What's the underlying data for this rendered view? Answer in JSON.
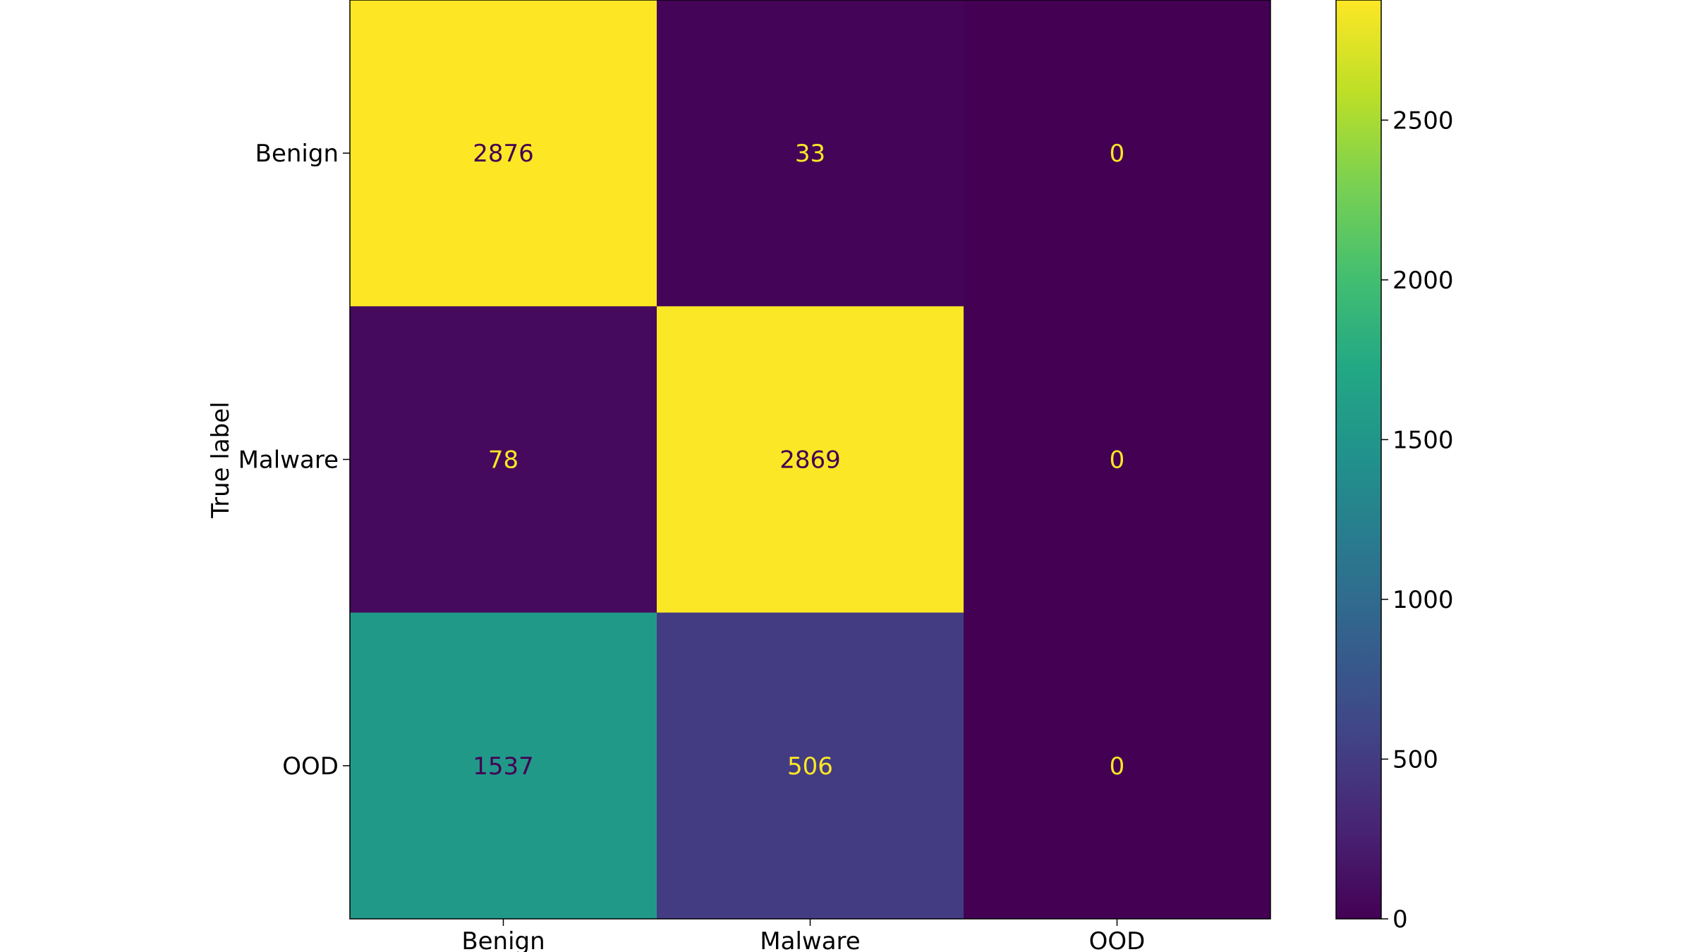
{
  "chart_data": {
    "type": "heatmap",
    "title": "",
    "ylabel": "True label",
    "xlabel": "",
    "x_categories": [
      "Benign",
      "Malware",
      "OOD"
    ],
    "y_categories": [
      "Benign",
      "Malware",
      "OOD"
    ],
    "values": [
      [
        2876,
        33,
        0
      ],
      [
        78,
        2869,
        0
      ],
      [
        1537,
        506,
        0
      ]
    ],
    "colormap": "viridis",
    "color_range": [
      0,
      2876
    ],
    "colorbar_ticks": [
      0,
      500,
      1000,
      1500,
      2000,
      2500
    ],
    "colorbar_tick_labels": [
      "0",
      "500",
      "1000",
      "1500",
      "2000",
      "2500"
    ],
    "text_color_low": "#fde725",
    "text_color_high": "#440154"
  }
}
